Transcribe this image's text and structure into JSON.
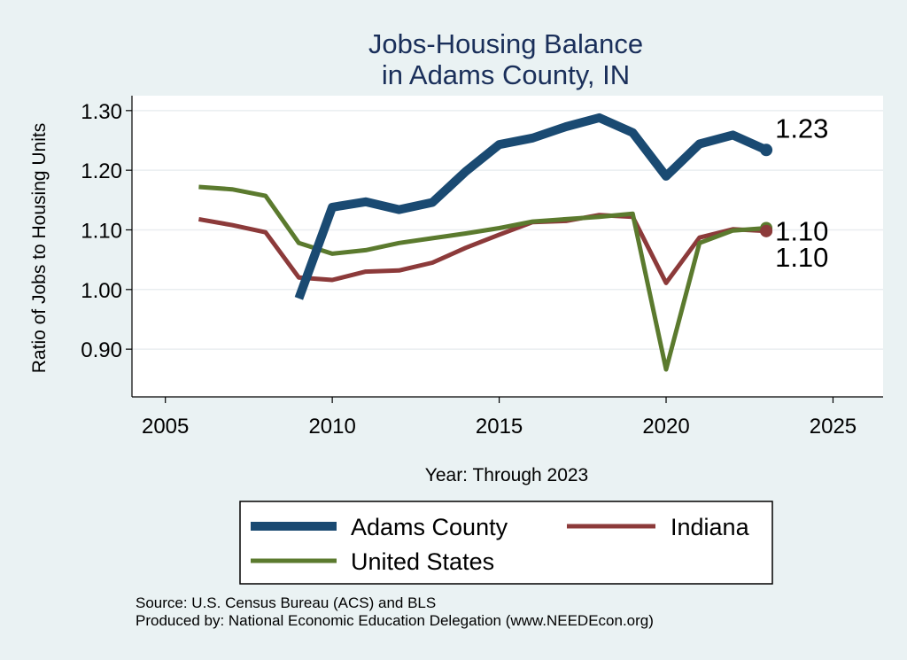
{
  "chart_data": {
    "type": "line",
    "title": [
      "Jobs-Housing Balance",
      "in Adams County, IN"
    ],
    "xlabel": "Year: Through 2023",
    "ylabel": "Ratio of Jobs to Housing Units",
    "xlim": [
      2004,
      2026.5
    ],
    "ylim": [
      0.82,
      1.325
    ],
    "xticks": [
      2005,
      2010,
      2015,
      2020,
      2025
    ],
    "yticks": [
      0.9,
      1.0,
      1.1,
      1.2,
      1.3
    ],
    "ytick_labels": [
      "0.90",
      "1.00",
      "1.10",
      "1.20",
      "1.30"
    ],
    "grid": true,
    "legend_position": "bottom",
    "series": [
      {
        "name": "Adams County",
        "color": "#1a4a72",
        "end_label": "1.23",
        "x": [
          2009,
          2010,
          2011,
          2012,
          2013,
          2014,
          2015,
          2016,
          2017,
          2018,
          2019,
          2020,
          2021,
          2022,
          2023
        ],
        "y": [
          0.985,
          1.138,
          1.147,
          1.134,
          1.146,
          1.198,
          1.243,
          1.254,
          1.273,
          1.288,
          1.263,
          1.19,
          1.244,
          1.259,
          1.234
        ]
      },
      {
        "name": "Indiana",
        "color": "#8c3a3a",
        "end_label": "1.10",
        "x": [
          2006,
          2007,
          2008,
          2009,
          2010,
          2011,
          2012,
          2013,
          2014,
          2015,
          2016,
          2017,
          2018,
          2019,
          2020,
          2021,
          2022,
          2023
        ],
        "y": [
          1.118,
          1.108,
          1.096,
          1.02,
          1.016,
          1.03,
          1.032,
          1.045,
          1.07,
          1.092,
          1.113,
          1.115,
          1.125,
          1.122,
          1.011,
          1.087,
          1.101,
          1.098
        ]
      },
      {
        "name": "United States",
        "color": "#5b7a2e",
        "end_label": "1.10",
        "x": [
          2006,
          2007,
          2008,
          2009,
          2010,
          2011,
          2012,
          2013,
          2014,
          2015,
          2016,
          2017,
          2018,
          2019,
          2020,
          2021,
          2022,
          2023
        ],
        "y": [
          1.172,
          1.168,
          1.157,
          1.078,
          1.06,
          1.066,
          1.078,
          1.086,
          1.094,
          1.103,
          1.114,
          1.118,
          1.122,
          1.127,
          0.866,
          1.078,
          1.099,
          1.103
        ]
      }
    ]
  },
  "source_lines": [
    "Source: U.S. Census Bureau (ACS) and BLS",
    "Produced by: National Economic Education Delegation (www.NEEDEcon.org)"
  ]
}
